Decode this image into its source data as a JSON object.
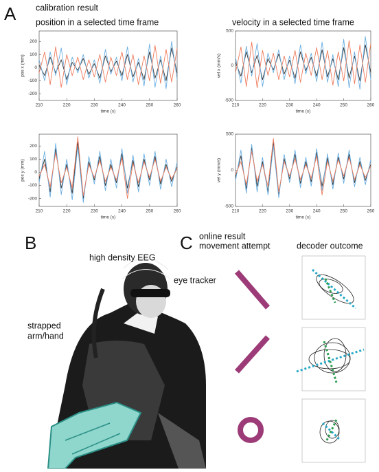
{
  "panel_a": {
    "label": "A",
    "heading": "calibration result"
  },
  "panel_b": {
    "label": "B",
    "eeg_label": "high density EEG",
    "eye_label": "eye tracker",
    "arm_label_lines": [
      "strapped",
      "arm/hand"
    ]
  },
  "panel_c": {
    "label": "C",
    "heading_lines": [
      "online result",
      "movement attempt"
    ],
    "column_title": "decoder outcome"
  },
  "chart_data": [
    {
      "type": "line",
      "title": "position in a selected time frame",
      "xlabel": "time (s)",
      "ylabel": "pos x (mm)",
      "x": [
        210,
        212,
        214,
        216,
        218,
        220,
        222,
        224,
        226,
        228,
        230,
        232,
        234,
        236,
        238,
        240,
        242,
        244,
        246,
        248,
        250,
        252,
        254,
        256,
        258,
        260
      ],
      "xlim": [
        210,
        260
      ],
      "xticks": [
        210,
        220,
        230,
        240,
        250,
        260
      ],
      "ylim": [
        -250,
        280
      ],
      "yticks": [
        -200,
        -100,
        0,
        100,
        200
      ],
      "series": [
        {
          "color": "#333333",
          "values": [
            20,
            -60,
            80,
            -40,
            60,
            -90,
            40,
            -20,
            70,
            -50,
            30,
            -80,
            90,
            -30,
            50,
            -60,
            100,
            -70,
            40,
            -90,
            120,
            -80,
            60,
            -100,
            150,
            -40
          ]
        },
        {
          "color": "#6aaee0",
          "values": [
            60,
            -100,
            120,
            -60,
            150,
            -130,
            80,
            -40,
            100,
            -80,
            60,
            -120,
            140,
            -50,
            80,
            -100,
            160,
            -110,
            70,
            -140,
            180,
            -150,
            90,
            -160,
            200,
            -90
          ]
        },
        {
          "color": "#ee7a5a",
          "values": [
            -40,
            120,
            -130,
            160,
            -150,
            100,
            -60,
            80,
            -90,
            60,
            -70,
            100,
            -110,
            80,
            -60,
            120,
            -90,
            100,
            -130,
            90,
            -100,
            170,
            -120,
            140,
            -110,
            150
          ]
        }
      ]
    },
    {
      "type": "line",
      "title": "velocity in a selected time frame",
      "xlabel": "time (s)",
      "ylabel": "vel x (mm/s)",
      "x": [
        210,
        212,
        214,
        216,
        218,
        220,
        222,
        224,
        226,
        228,
        230,
        232,
        234,
        236,
        238,
        240,
        242,
        244,
        246,
        248,
        250,
        252,
        254,
        256,
        258,
        260
      ],
      "xlim": [
        210,
        260
      ],
      "xticks": [
        210,
        220,
        230,
        240,
        250,
        260
      ],
      "ylim": [
        -500,
        500
      ],
      "yticks": [
        -500,
        0,
        500
      ],
      "series": [
        {
          "color": "#333333",
          "values": [
            50,
            -150,
            200,
            -100,
            150,
            -200,
            100,
            -60,
            170,
            -120,
            80,
            -180,
            200,
            -70,
            120,
            -150,
            230,
            -160,
            100,
            -200,
            260,
            -180,
            140,
            -220,
            300,
            -100
          ]
        },
        {
          "color": "#6aaee0",
          "values": [
            120,
            -250,
            280,
            -150,
            320,
            -300,
            180,
            -100,
            230,
            -200,
            140,
            -260,
            300,
            -120,
            180,
            -230,
            340,
            -240,
            160,
            -300,
            380,
            -320,
            200,
            -340,
            420,
            -200
          ]
        },
        {
          "color": "#ee7a5a",
          "values": [
            -100,
            270,
            -300,
            340,
            -320,
            220,
            -140,
            180,
            -200,
            140,
            -160,
            220,
            -240,
            180,
            -140,
            260,
            -200,
            220,
            -280,
            200,
            -220,
            360,
            -260,
            300,
            -240,
            320
          ]
        }
      ]
    },
    {
      "type": "line",
      "xlabel": "time (s)",
      "ylabel": "pos y (mm)",
      "x": [
        210,
        212,
        214,
        216,
        218,
        220,
        222,
        224,
        226,
        228,
        230,
        232,
        234,
        236,
        238,
        240,
        242,
        244,
        246,
        248,
        250,
        252,
        254,
        256,
        258,
        260
      ],
      "xlim": [
        210,
        260
      ],
      "xticks": [
        210,
        220,
        230,
        240,
        250,
        260
      ],
      "ylim": [
        -260,
        290
      ],
      "yticks": [
        -200,
        -100,
        0,
        100,
        200
      ],
      "series": [
        {
          "color": "#333333",
          "values": [
            -50,
            100,
            -150,
            180,
            -120,
            60,
            -160,
            230,
            -200,
            80,
            -60,
            120,
            -100,
            60,
            -80,
            140,
            -120,
            90,
            -110,
            100,
            -60,
            120,
            -90,
            60,
            -70,
            40
          ]
        },
        {
          "color": "#6aaee0",
          "values": [
            -80,
            160,
            -190,
            220,
            -170,
            100,
            -210,
            200,
            -230,
            120,
            -90,
            160,
            -140,
            100,
            -120,
            180,
            -160,
            130,
            -150,
            140,
            -100,
            160,
            -130,
            100,
            -110,
            80
          ]
        },
        {
          "color": "#ee7a5a",
          "values": [
            -30,
            60,
            -110,
            150,
            -80,
            40,
            -120,
            270,
            -180,
            60,
            -40,
            90,
            -70,
            40,
            -60,
            110,
            -200,
            70,
            -80,
            80,
            -40,
            100,
            -70,
            40,
            -50,
            30
          ]
        }
      ]
    },
    {
      "type": "line",
      "xlabel": "time (s)",
      "ylabel": "vel y (mm/s)",
      "x": [
        210,
        212,
        214,
        216,
        218,
        220,
        222,
        224,
        226,
        228,
        230,
        232,
        234,
        236,
        238,
        240,
        242,
        244,
        246,
        248,
        250,
        252,
        254,
        256,
        258,
        260
      ],
      "xlim": [
        210,
        260
      ],
      "xticks": [
        210,
        220,
        230,
        240,
        250,
        260
      ],
      "ylim": [
        -500,
        500
      ],
      "yticks": [
        -500,
        0,
        500
      ],
      "series": [
        {
          "color": "#333333",
          "values": [
            -100,
            200,
            -260,
            320,
            -220,
            120,
            -300,
            380,
            -340,
            160,
            -120,
            220,
            -180,
            120,
            -160,
            250,
            -220,
            170,
            -200,
            180,
            -120,
            220,
            -170,
            120,
            -140,
            80
          ]
        },
        {
          "color": "#6aaee0",
          "values": [
            -150,
            280,
            -320,
            360,
            -300,
            180,
            -340,
            340,
            -380,
            220,
            -170,
            280,
            -240,
            180,
            -220,
            300,
            -280,
            230,
            -260,
            240,
            -180,
            280,
            -230,
            180,
            -200,
            150
          ]
        },
        {
          "color": "#ee7a5a",
          "values": [
            -60,
            120,
            -200,
            260,
            -150,
            80,
            -220,
            440,
            -300,
            120,
            -80,
            160,
            -130,
            80,
            -110,
            200,
            -340,
            130,
            -150,
            150,
            -80,
            180,
            -130,
            80,
            -100,
            60
          ]
        }
      ]
    }
  ]
}
